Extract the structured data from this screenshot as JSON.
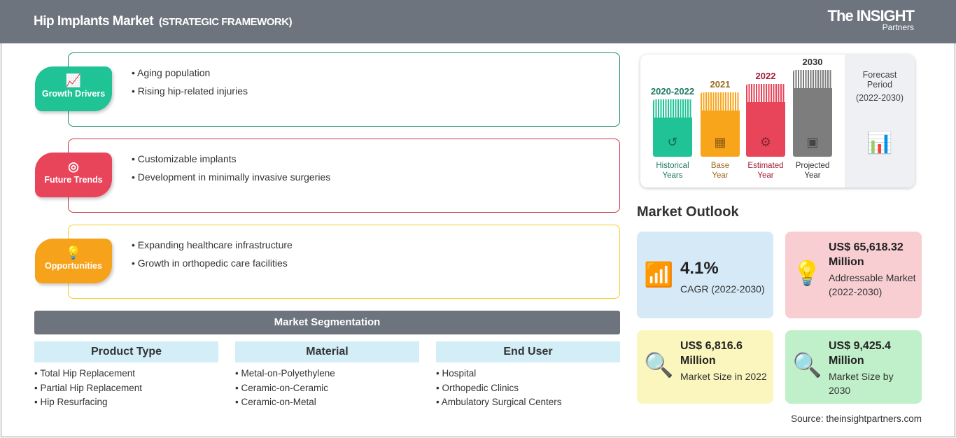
{
  "header": {
    "title": "Hip Implants Market",
    "subtitle": "(STRATEGIC FRAMEWORK)",
    "logo": {
      "top": "The INSIGHT",
      "bottom": "Partners"
    }
  },
  "sections": [
    {
      "label": "Growth Drivers",
      "icon": "chart-growth-icon",
      "color": "#1fc396",
      "items": [
        "Aging population",
        "Rising hip-related injuries"
      ]
    },
    {
      "label": "Future Trends",
      "icon": "target-icon",
      "color": "#e8455a",
      "items": [
        "Customizable implants",
        "Development in minimally invasive surgeries"
      ]
    },
    {
      "label": "Opportunities",
      "icon": "lightbulb-hand-icon",
      "color": "#f7a21b",
      "items": [
        "Expanding healthcare infrastructure",
        "Growth in orthopedic care facilities"
      ]
    }
  ],
  "segmentation": {
    "title": "Market Segmentation",
    "columns": [
      {
        "header": "Product Type",
        "items": [
          "Total Hip Replacement",
          "Partial Hip Replacement",
          "Hip Resurfacing"
        ]
      },
      {
        "header": "Material",
        "items": [
          "Metal-on-Polyethylene",
          "Ceramic-on-Ceramic",
          "Ceramic-on-Metal"
        ]
      },
      {
        "header": "End User",
        "items": [
          "Hospital",
          "Orthopedic Clinics",
          "Ambulatory Surgical Centers"
        ]
      }
    ]
  },
  "timeline": {
    "bars": [
      {
        "year": "2020-2022",
        "label1": "Historical",
        "label2": "Years",
        "color": "#1fc396",
        "text_color": "#1b7a63"
      },
      {
        "year": "2021",
        "label1": "Base",
        "label2": "Year",
        "color": "#f9a51c",
        "text_color": "#9c6a20"
      },
      {
        "year": "2022",
        "label1": "Estimated",
        "label2": "Year",
        "color": "#e8455a",
        "text_color": "#a3203a"
      },
      {
        "year": "2030",
        "label1": "Projected",
        "label2": "Year",
        "color": "#7d7d7d",
        "text_color": "#333333"
      }
    ],
    "forecast": {
      "line1": "Forecast",
      "line2": "Period",
      "line3": "(2022-2030)"
    }
  },
  "outlook": {
    "title": "Market Outlook",
    "cards": [
      {
        "value": "4.1%",
        "desc": "CAGR (2022-2030)",
        "color": "#d5e9f6"
      },
      {
        "value": "US$ 65,618.32 Million",
        "desc": "Addressable Market (2022-2030)",
        "color": "#f8ced3"
      },
      {
        "value": "US$ 6,816.6 Million",
        "desc": "Market Size in 2022",
        "color": "#fbf6bd"
      },
      {
        "value": "US$ 9,425.4 Million",
        "desc": "Market Size by 2030",
        "color": "#c0f0c9"
      }
    ]
  },
  "source": "Source: theinsightpartners.com"
}
